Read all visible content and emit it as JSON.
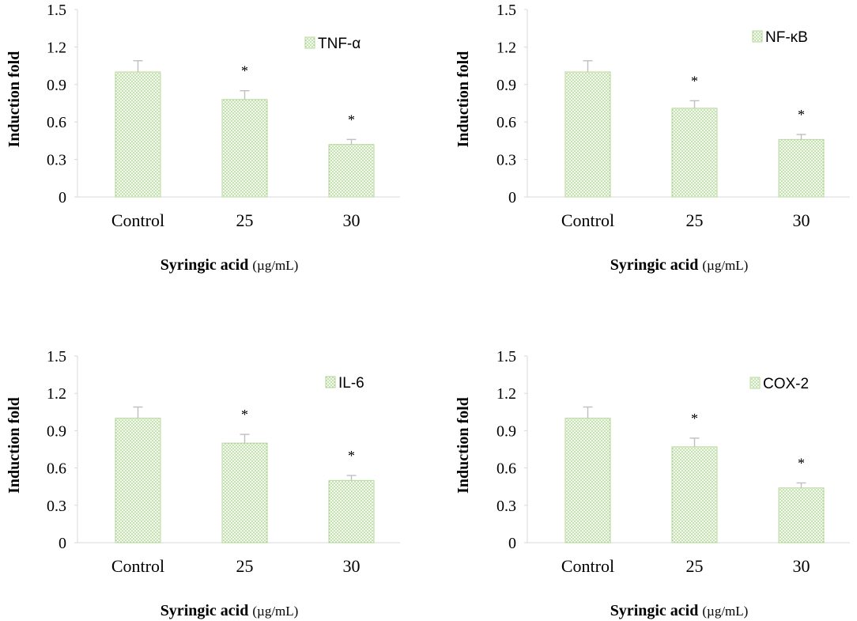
{
  "colors": {
    "bar_fill": "#f2f9ec",
    "bar_dot": "#8cc06a",
    "bar_edge": "#b5d99b",
    "error_bar": "#bfbfbf",
    "axis": "#d9d9d9"
  },
  "chart_data": [
    {
      "type": "bar",
      "legend": "TNF-α",
      "categories": [
        "Control",
        "25",
        "30"
      ],
      "values": [
        1.0,
        0.78,
        0.42
      ],
      "errors": [
        0.09,
        0.07,
        0.04
      ],
      "significance": [
        "",
        "*",
        "*"
      ],
      "ylabel": "Induction fold",
      "xlabel_main": "Syringic acid",
      "xlabel_unit": "(µg/mL)",
      "ylim": [
        0,
        1.5
      ],
      "yticks": [
        "0",
        "0.3",
        "0.6",
        "0.9",
        "1.2",
        "1.5"
      ]
    },
    {
      "type": "bar",
      "legend": "NF-κB",
      "categories": [
        "Control",
        "25",
        "30"
      ],
      "values": [
        1.0,
        0.71,
        0.46
      ],
      "errors": [
        0.09,
        0.06,
        0.04
      ],
      "significance": [
        "",
        "*",
        "*"
      ],
      "ylabel": "Induction fold",
      "xlabel_main": "Syringic acid",
      "xlabel_unit": "(µg/mL)",
      "ylim": [
        0,
        1.5
      ],
      "yticks": [
        "0",
        "0.3",
        "0.6",
        "0.9",
        "1.2",
        "1.5"
      ]
    },
    {
      "type": "bar",
      "legend": "IL-6",
      "categories": [
        "Control",
        "25",
        "30"
      ],
      "values": [
        1.0,
        0.8,
        0.5
      ],
      "errors": [
        0.09,
        0.07,
        0.04
      ],
      "significance": [
        "",
        "*",
        "*"
      ],
      "ylabel": "Induction fold",
      "xlabel_main": "Syringic acid",
      "xlabel_unit": "(µg/mL)",
      "ylim": [
        0,
        1.5
      ],
      "yticks": [
        "0",
        "0.3",
        "0.6",
        "0.9",
        "1.2",
        "1.5"
      ]
    },
    {
      "type": "bar",
      "legend": "COX-2",
      "categories": [
        "Control",
        "25",
        "30"
      ],
      "values": [
        1.0,
        0.77,
        0.44
      ],
      "errors": [
        0.09,
        0.07,
        0.04
      ],
      "significance": [
        "",
        "*",
        "*"
      ],
      "ylabel": "Induction fold",
      "xlabel_main": "Syringic acid",
      "xlabel_unit": "(µg/mL)",
      "ylim": [
        0,
        1.5
      ],
      "yticks": [
        "0",
        "0.3",
        "0.6",
        "0.9",
        "1.2",
        "1.5"
      ]
    }
  ]
}
